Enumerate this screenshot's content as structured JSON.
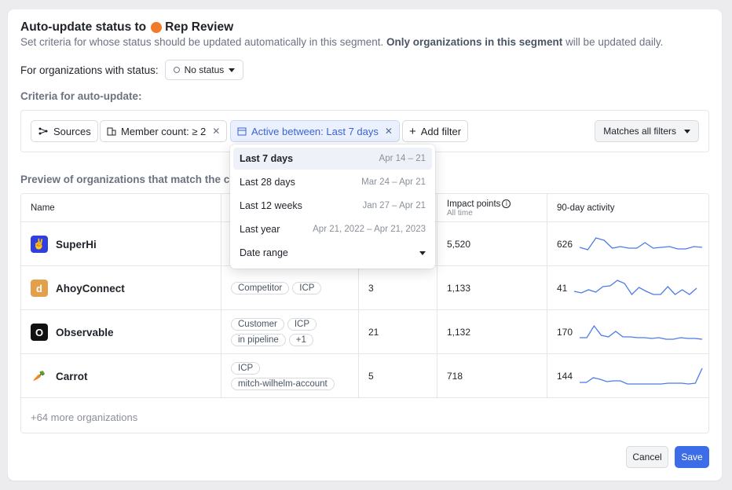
{
  "header": {
    "title_prefix": "Auto-update status to",
    "title_status": "Rep Review",
    "status_color": "#f27a2b",
    "subtitle_a": "Set criteria for whose status should be updated automatically in this segment.",
    "subtitle_b": "Only organizations in this segment",
    "subtitle_c": "will be updated daily."
  },
  "status_filter": {
    "label": "For organizations with status:",
    "value": "No status"
  },
  "criteria": {
    "label": "Criteria for auto-update:",
    "chips": [
      {
        "label": "Sources",
        "icon": "sources-icon"
      },
      {
        "label": "Member count: ≥ 2",
        "icon": "building-icon"
      },
      {
        "label": "Active between: Last 7 days",
        "icon": "calendar-icon"
      }
    ],
    "add_filter": "Add filter",
    "matches": "Matches all filters"
  },
  "dropdown": {
    "options": [
      {
        "label": "Last 7 days",
        "range": "Apr 14 – 21"
      },
      {
        "label": "Last 28 days",
        "range": "Mar 24 – Apr 21"
      },
      {
        "label": "Last 12 weeks",
        "range": "Jan 27 – Apr 21"
      },
      {
        "label": "Last year",
        "range": "Apr 21, 2022 – Apr 21, 2023"
      },
      {
        "label": "Date range",
        "range": ""
      }
    ]
  },
  "preview": {
    "label": "Preview of organizations that match the cr",
    "columns": {
      "name": "Name",
      "impact": "Impact points",
      "impact_sub": "All time",
      "activity": "90-day activity"
    },
    "rows": [
      {
        "name": "SuperHi",
        "logo_color": "#2f3fe0",
        "logo_glyph": "✌",
        "tags1": [],
        "tags2": [],
        "count": "",
        "impact": "5,520",
        "activity": "626",
        "spark": [
          8,
          5,
          20,
          17,
          7,
          9,
          7,
          7,
          14,
          7,
          8,
          9,
          6,
          6,
          9,
          8
        ]
      },
      {
        "name": "AhoyConnect",
        "logo_color": "#e3a04a",
        "logo_glyph": "d",
        "tags1": [
          "Competitor",
          "ICP"
        ],
        "tags2": [],
        "count": "3",
        "impact": "1,133",
        "activity": "41",
        "spark": [
          8,
          6,
          10,
          7,
          14,
          15,
          22,
          18,
          4,
          13,
          8,
          4,
          4,
          14,
          4,
          10,
          4,
          12
        ]
      },
      {
        "name": "Observable",
        "logo_color": "#111111",
        "logo_glyph": "O",
        "tags1": [
          "Customer",
          "ICP"
        ],
        "tags2": [
          "in pipeline",
          "+1"
        ],
        "count": "21",
        "impact": "1,132",
        "activity": "170",
        "spark": [
          5,
          5,
          20,
          8,
          6,
          13,
          6,
          6,
          5,
          5,
          4,
          5,
          3,
          3,
          5,
          4,
          4,
          3
        ]
      },
      {
        "name": "Carrot",
        "logo_color": "#ffffff",
        "logo_glyph": "🥕",
        "tags1": [
          "ICP"
        ],
        "tags2": [
          "mitch-wilhelm-account"
        ],
        "count": "5",
        "impact": "718",
        "activity": "144",
        "spark": [
          4,
          4,
          10,
          8,
          5,
          6,
          6,
          2,
          2,
          2,
          2,
          2,
          2,
          3,
          3,
          3,
          2,
          3,
          22
        ]
      }
    ],
    "more": "+64 more organizations"
  },
  "footer": {
    "cancel": "Cancel",
    "save": "Save"
  }
}
